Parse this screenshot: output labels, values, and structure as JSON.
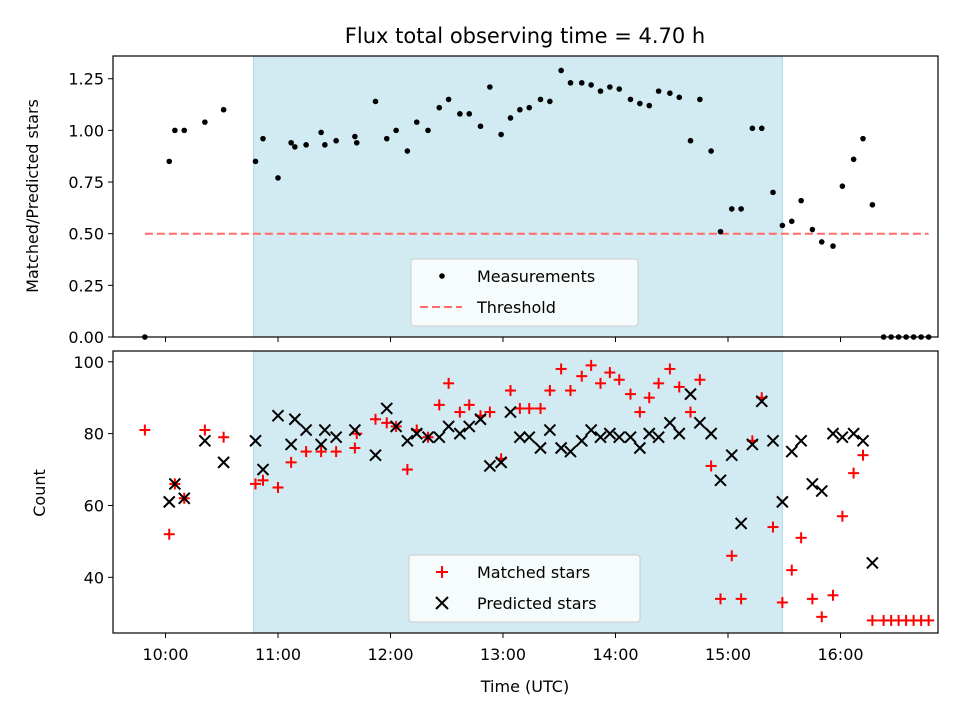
{
  "title": "Flux total observing time = 4.70 h",
  "colors": {
    "window": "#add8e6",
    "threshold": "#ff6b6b",
    "measurement": "#000000",
    "matched": "#ff0000",
    "predicted": "#000000"
  },
  "chart_data": [
    {
      "type": "scatter",
      "ylabel": "Matched/Predicted stars",
      "ylim": [
        0,
        1.36
      ],
      "yticks": [
        "0.00",
        "0.25",
        "0.50",
        "0.75",
        "1.00",
        "1.25"
      ],
      "xlim": [
        "09:32",
        "16:52"
      ],
      "shaded_window": [
        "10:47",
        "15:29"
      ],
      "threshold": 0.5,
      "legend": {
        "placement": "lower-center",
        "measurements": "Measurements",
        "threshold": "Threshold"
      },
      "series": [
        {
          "name": "Measurements",
          "marker": "dot",
          "points": [
            [
              "09:49",
              0.0
            ],
            [
              "10:02",
              0.85
            ],
            [
              "10:05",
              1.0
            ],
            [
              "10:10",
              1.0
            ],
            [
              "10:21",
              1.04
            ],
            [
              "10:31",
              1.1
            ],
            [
              "10:48",
              0.85
            ],
            [
              "10:52",
              0.96
            ],
            [
              "11:00",
              0.77
            ],
            [
              "11:07",
              0.94
            ],
            [
              "11:09",
              0.92
            ],
            [
              "11:15",
              0.93
            ],
            [
              "11:23",
              0.99
            ],
            [
              "11:25",
              0.93
            ],
            [
              "11:31",
              0.95
            ],
            [
              "11:41",
              0.97
            ],
            [
              "11:42",
              0.94
            ],
            [
              "11:52",
              1.14
            ],
            [
              "11:58",
              0.96
            ],
            [
              "12:03",
              1.0
            ],
            [
              "12:09",
              0.9
            ],
            [
              "12:14",
              1.04
            ],
            [
              "12:20",
              1.0
            ],
            [
              "12:26",
              1.11
            ],
            [
              "12:31",
              1.15
            ],
            [
              "12:37",
              1.08
            ],
            [
              "12:42",
              1.08
            ],
            [
              "12:48",
              1.02
            ],
            [
              "12:53",
              1.21
            ],
            [
              "12:59",
              0.98
            ],
            [
              "13:04",
              1.06
            ],
            [
              "13:09",
              1.1
            ],
            [
              "13:14",
              1.11
            ],
            [
              "13:20",
              1.15
            ],
            [
              "13:25",
              1.14
            ],
            [
              "13:31",
              1.29
            ],
            [
              "13:36",
              1.23
            ],
            [
              "13:42",
              1.23
            ],
            [
              "13:47",
              1.22
            ],
            [
              "13:52",
              1.19
            ],
            [
              "13:57",
              1.21
            ],
            [
              "14:02",
              1.2
            ],
            [
              "14:08",
              1.15
            ],
            [
              "14:13",
              1.13
            ],
            [
              "14:18",
              1.12
            ],
            [
              "14:23",
              1.19
            ],
            [
              "14:29",
              1.18
            ],
            [
              "14:34",
              1.16
            ],
            [
              "14:40",
              0.95
            ],
            [
              "14:45",
              1.15
            ],
            [
              "14:51",
              0.9
            ],
            [
              "14:56",
              0.51
            ],
            [
              "15:02",
              0.62
            ],
            [
              "15:07",
              0.62
            ],
            [
              "15:13",
              1.01
            ],
            [
              "15:18",
              1.01
            ],
            [
              "15:24",
              0.7
            ],
            [
              "15:29",
              0.54
            ],
            [
              "15:34",
              0.56
            ],
            [
              "15:39",
              0.66
            ],
            [
              "15:45",
              0.52
            ],
            [
              "15:50",
              0.46
            ],
            [
              "15:56",
              0.44
            ],
            [
              "16:01",
              0.73
            ],
            [
              "16:07",
              0.86
            ],
            [
              "16:12",
              0.96
            ],
            [
              "16:17",
              0.64
            ],
            [
              "16:23",
              0.0
            ],
            [
              "16:27",
              0.0
            ],
            [
              "16:31",
              0.0
            ],
            [
              "16:35",
              0.0
            ],
            [
              "16:39",
              0.0
            ],
            [
              "16:43",
              0.0
            ],
            [
              "16:47",
              0.0
            ]
          ]
        }
      ]
    },
    {
      "type": "scatter",
      "ylabel": "Count",
      "xlabel": "Time (UTC)",
      "ylim": [
        24.5,
        103
      ],
      "yticks": [
        "40",
        "60",
        "80",
        "100"
      ],
      "xlim": [
        "09:32",
        "16:52"
      ],
      "xticks": [
        "10:00",
        "11:00",
        "12:00",
        "13:00",
        "14:00",
        "15:00",
        "16:00"
      ],
      "shaded_window": [
        "10:47",
        "15:29"
      ],
      "legend": {
        "placement": "lower-center"
      },
      "series": [
        {
          "name": "Matched stars",
          "marker": "plus",
          "points": [
            [
              "09:49",
              81
            ],
            [
              "10:02",
              52
            ],
            [
              "10:05",
              66
            ],
            [
              "10:10",
              62
            ],
            [
              "10:21",
              81
            ],
            [
              "10:31",
              79
            ],
            [
              "10:48",
              66
            ],
            [
              "10:52",
              67
            ],
            [
              "11:00",
              65
            ],
            [
              "11:07",
              72
            ],
            [
              "11:15",
              75
            ],
            [
              "11:23",
              75
            ],
            [
              "11:31",
              75
            ],
            [
              "11:41",
              76
            ],
            [
              "11:42",
              80
            ],
            [
              "11:52",
              84
            ],
            [
              "11:58",
              83
            ],
            [
              "12:03",
              82
            ],
            [
              "12:09",
              70
            ],
            [
              "12:14",
              81
            ],
            [
              "12:20",
              79
            ],
            [
              "12:26",
              88
            ],
            [
              "12:31",
              94
            ],
            [
              "12:37",
              86
            ],
            [
              "12:42",
              88
            ],
            [
              "12:48",
              85
            ],
            [
              "12:53",
              86
            ],
            [
              "12:59",
              73
            ],
            [
              "13:04",
              92
            ],
            [
              "13:09",
              87
            ],
            [
              "13:14",
              87
            ],
            [
              "13:20",
              87
            ],
            [
              "13:25",
              92
            ],
            [
              "13:31",
              98
            ],
            [
              "13:36",
              92
            ],
            [
              "13:42",
              96
            ],
            [
              "13:47",
              99
            ],
            [
              "13:52",
              94
            ],
            [
              "13:57",
              97
            ],
            [
              "14:02",
              95
            ],
            [
              "14:08",
              91
            ],
            [
              "14:13",
              86
            ],
            [
              "14:18",
              90
            ],
            [
              "14:23",
              94
            ],
            [
              "14:29",
              98
            ],
            [
              "14:34",
              93
            ],
            [
              "14:40",
              86
            ],
            [
              "14:45",
              95
            ],
            [
              "14:51",
              71
            ],
            [
              "14:56",
              34
            ],
            [
              "15:02",
              46
            ],
            [
              "15:07",
              34
            ],
            [
              "15:13",
              78
            ],
            [
              "15:18",
              90
            ],
            [
              "15:24",
              54
            ],
            [
              "15:29",
              33
            ],
            [
              "15:34",
              42
            ],
            [
              "15:39",
              51
            ],
            [
              "15:45",
              34
            ],
            [
              "15:50",
              29
            ],
            [
              "15:56",
              35
            ],
            [
              "16:01",
              57
            ],
            [
              "16:07",
              69
            ],
            [
              "16:12",
              74
            ],
            [
              "16:17",
              28
            ],
            [
              "16:23",
              28
            ],
            [
              "16:27",
              28
            ],
            [
              "16:31",
              28
            ],
            [
              "16:35",
              28
            ],
            [
              "16:39",
              28
            ],
            [
              "16:43",
              28
            ],
            [
              "16:47",
              28
            ]
          ]
        },
        {
          "name": "Predicted stars",
          "marker": "x",
          "points": [
            [
              "10:02",
              61
            ],
            [
              "10:05",
              66
            ],
            [
              "10:10",
              62
            ],
            [
              "10:21",
              78
            ],
            [
              "10:31",
              72
            ],
            [
              "10:48",
              78
            ],
            [
              "10:52",
              70
            ],
            [
              "11:00",
              85
            ],
            [
              "11:07",
              77
            ],
            [
              "11:09",
              84
            ],
            [
              "11:15",
              81
            ],
            [
              "11:23",
              77
            ],
            [
              "11:25",
              81
            ],
            [
              "11:31",
              79
            ],
            [
              "11:41",
              81
            ],
            [
              "11:52",
              74
            ],
            [
              "11:58",
              87
            ],
            [
              "12:03",
              82
            ],
            [
              "12:09",
              78
            ],
            [
              "12:14",
              80
            ],
            [
              "12:20",
              79
            ],
            [
              "12:26",
              79
            ],
            [
              "12:31",
              82
            ],
            [
              "12:37",
              80
            ],
            [
              "12:42",
              82
            ],
            [
              "12:48",
              84
            ],
            [
              "12:53",
              71
            ],
            [
              "12:59",
              72
            ],
            [
              "13:04",
              86
            ],
            [
              "13:09",
              79
            ],
            [
              "13:14",
              79
            ],
            [
              "13:20",
              76
            ],
            [
              "13:25",
              81
            ],
            [
              "13:31",
              76
            ],
            [
              "13:36",
              75
            ],
            [
              "13:42",
              78
            ],
            [
              "13:47",
              81
            ],
            [
              "13:52",
              79
            ],
            [
              "13:57",
              80
            ],
            [
              "14:02",
              79
            ],
            [
              "14:08",
              79
            ],
            [
              "14:13",
              76
            ],
            [
              "14:18",
              80
            ],
            [
              "14:23",
              79
            ],
            [
              "14:29",
              83
            ],
            [
              "14:34",
              80
            ],
            [
              "14:40",
              91
            ],
            [
              "14:45",
              83
            ],
            [
              "14:51",
              80
            ],
            [
              "14:56",
              67
            ],
            [
              "15:02",
              74
            ],
            [
              "15:07",
              55
            ],
            [
              "15:13",
              77
            ],
            [
              "15:18",
              89
            ],
            [
              "15:24",
              78
            ],
            [
              "15:29",
              61
            ],
            [
              "15:34",
              75
            ],
            [
              "15:39",
              78
            ],
            [
              "15:45",
              66
            ],
            [
              "15:50",
              64
            ],
            [
              "15:56",
              80
            ],
            [
              "16:01",
              79
            ],
            [
              "16:07",
              80
            ],
            [
              "16:12",
              78
            ],
            [
              "16:17",
              44
            ]
          ]
        }
      ]
    }
  ]
}
